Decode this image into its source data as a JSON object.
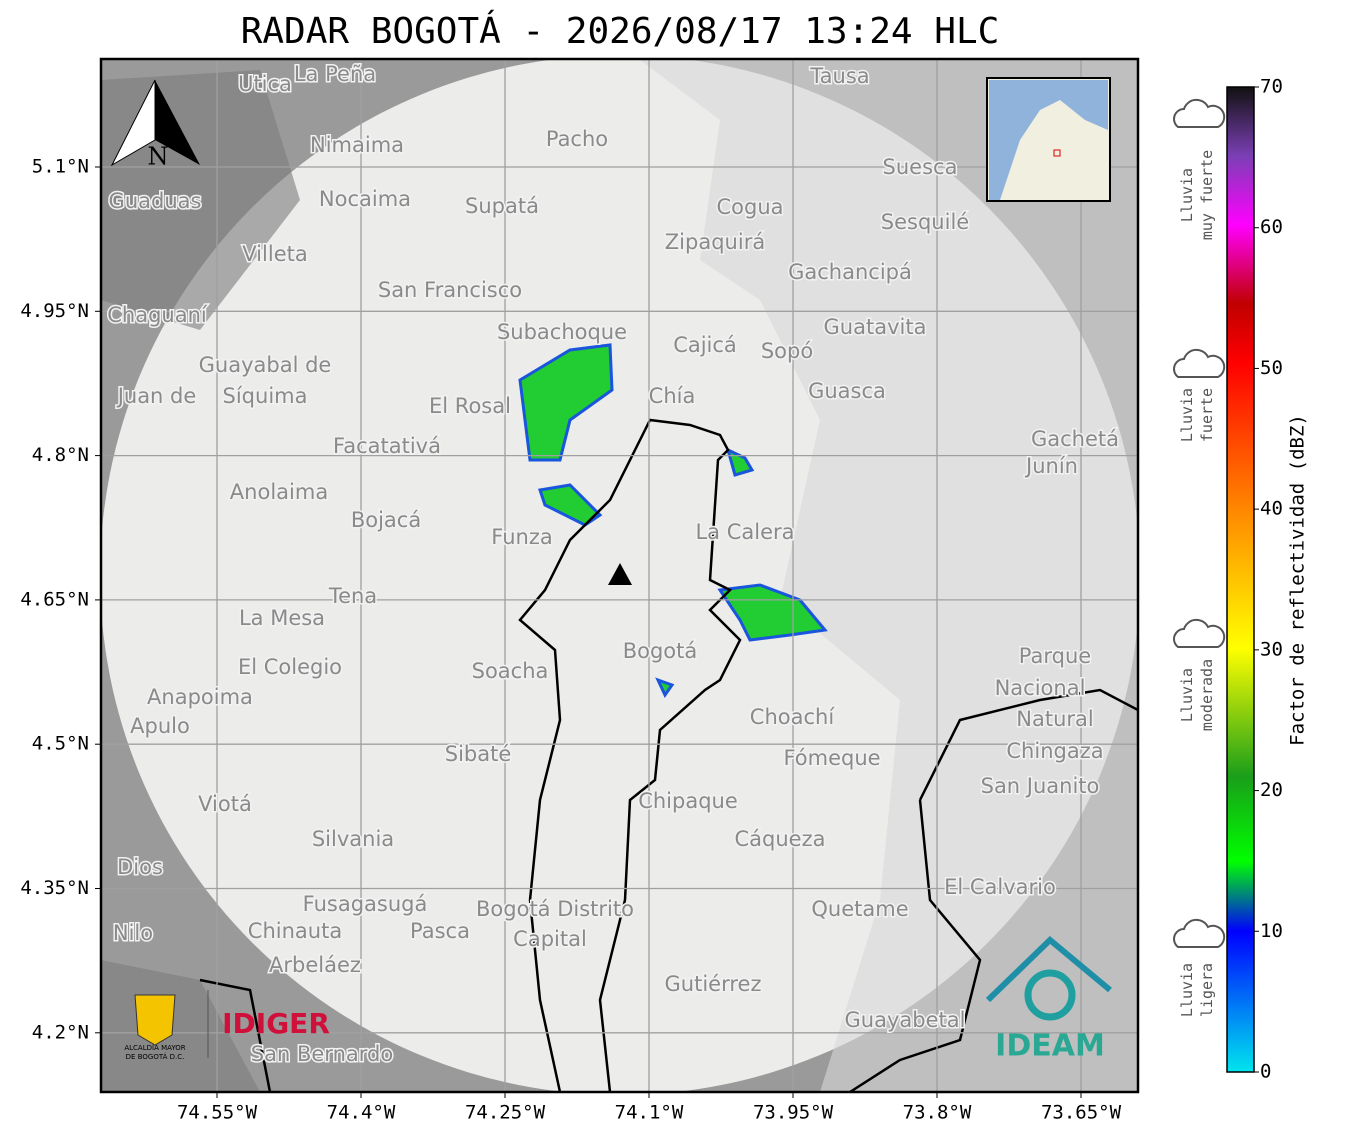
{
  "map": {
    "title": "RADAR BOGOTÁ - 2026/08/17 13:24 HLC",
    "lon_ticks": [
      {
        "value": -74.55,
        "label": "74.55°W"
      },
      {
        "value": -74.4,
        "label": "74.4°W"
      },
      {
        "value": -74.25,
        "label": "74.25°W"
      },
      {
        "value": -74.1,
        "label": "74.1°W"
      },
      {
        "value": -73.95,
        "label": "73.95°W"
      },
      {
        "value": -73.8,
        "label": "73.8°W"
      },
      {
        "value": -73.65,
        "label": "73.65°W"
      }
    ],
    "lat_ticks": [
      {
        "value": 5.1,
        "label": "5.1°N"
      },
      {
        "value": 4.95,
        "label": "4.95°N"
      },
      {
        "value": 4.8,
        "label": "4.8°N"
      },
      {
        "value": 4.65,
        "label": "4.65°N"
      },
      {
        "value": 4.5,
        "label": "4.5°N"
      },
      {
        "value": 4.35,
        "label": "4.35°N"
      },
      {
        "value": 4.2,
        "label": "4.2°N"
      }
    ],
    "compass": "N",
    "colorbar": {
      "label": "Factor de reflectividad (dBZ)",
      "range": [
        0,
        70
      ],
      "ticks": [
        0,
        10,
        20,
        30,
        40,
        50,
        60,
        70
      ]
    },
    "rain_levels": [
      [
        "Lluvia",
        "muy fuerte"
      ],
      [
        "Lluvia",
        "fuerte"
      ],
      [
        "Lluvia",
        "moderada"
      ],
      [
        "Lluvia",
        "ligera"
      ]
    ],
    "logos": {
      "alcaldia": [
        "ALCALDÍA MAYOR",
        "DE BOGOTÁ D.C."
      ],
      "idiger": "IDIGER",
      "ideam": "IDEAM"
    },
    "places": [
      "La Peña",
      "Utica",
      "Tausa",
      "Pacho",
      "Nimaima",
      "Suesca",
      "Guaduas",
      "Nocaima",
      "Supatá",
      "Cogua",
      "Sesquilé",
      "Zipaquirá",
      "Villeta",
      "Gachancipá",
      "San Francisco",
      "Chaguaní",
      "Guatavita",
      "Subachoque",
      "Cajicá",
      "Sopó",
      "Guayabal de",
      "Síquima",
      "Juan de",
      "Guasca",
      "Chía",
      "El Rosal",
      "Gachetá",
      "Facatativá",
      "Junín",
      "Anolaima",
      "Bojacá",
      "La Calera",
      "Funza",
      "Tena",
      "La Mesa",
      "Bogotá",
      "Parque",
      "El Colegio",
      "Soacha",
      "Nacional",
      "Anapoima",
      "Natural",
      "Choachí",
      "Apulo",
      "Sibaté",
      "Chingaza",
      "Fómeque",
      "San Juanito",
      "Viotá",
      "Chipaque",
      "Silvania",
      "Cáqueza",
      "Dios",
      "El Calvario",
      "Fusagasugá",
      "Quetame",
      "Bogotá Distrito",
      "Nilo",
      "Chinauta",
      "Pasca",
      "Capital",
      "Arbeláez",
      "Gutiérrez",
      "Guayabetal",
      "San Bernardo"
    ]
  }
}
